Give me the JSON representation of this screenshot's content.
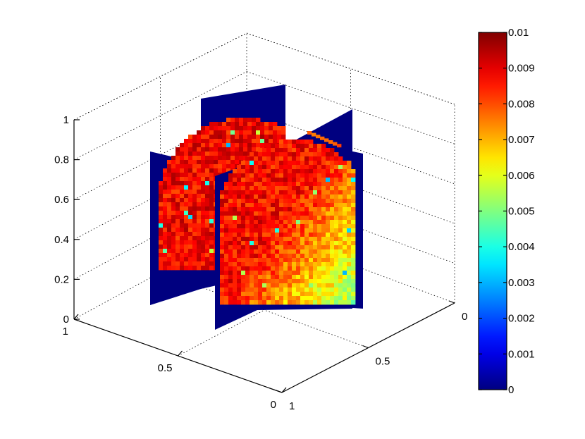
{
  "chart_data": {
    "type": "slice3d",
    "title": "",
    "xlabel": "",
    "ylabel": "",
    "zlabel": "",
    "x_axis": {
      "ticks": [
        "0",
        "0.5",
        "1"
      ],
      "range": [
        0,
        1
      ]
    },
    "y_axis": {
      "ticks": [
        "1",
        "0.5",
        "0"
      ],
      "range": [
        0,
        1
      ]
    },
    "z_axis": {
      "ticks": [
        "0",
        "0.2",
        "0.4",
        "0.6",
        "0.8",
        "1"
      ],
      "range": [
        0,
        1
      ]
    },
    "grid": true,
    "colormap": "jet",
    "colorbar": {
      "range": [
        0,
        0.01
      ],
      "ticks": [
        "0",
        "0.001",
        "0.002",
        "0.003",
        "0.004",
        "0.005",
        "0.006",
        "0.007",
        "0.008",
        "0.009",
        "0.01"
      ],
      "placement": "right"
    },
    "background_value": 0,
    "slices": [
      {
        "name": "back",
        "typical_value": 0.0088,
        "fade": 0.0003
      },
      {
        "name": "front",
        "typical_value": 0.0087,
        "fade": 0.0028
      }
    ]
  }
}
